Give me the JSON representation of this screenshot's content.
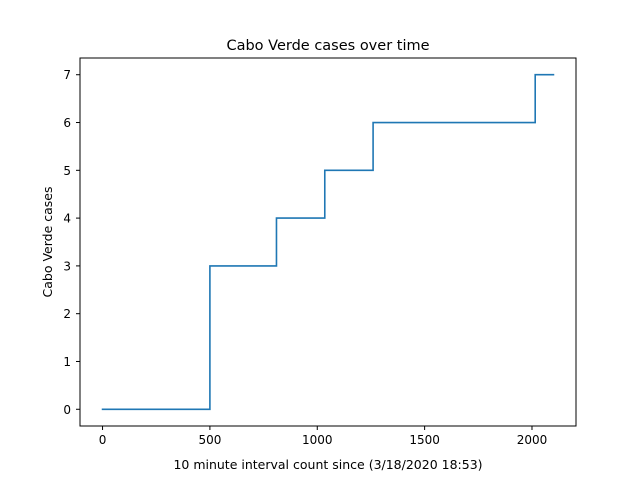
{
  "chart_data": {
    "type": "line",
    "title": "Cabo Verde cases over time",
    "xlabel": "10 minute interval count since (3/18/2020 18:53)",
    "ylabel": "Cabo Verde cases",
    "xlim": [
      -105,
      2205
    ],
    "ylim": [
      -0.35,
      7.35
    ],
    "xticks": [
      0,
      500,
      1000,
      1500,
      2000
    ],
    "yticks": [
      0,
      1,
      2,
      3,
      4,
      5,
      6,
      7
    ],
    "grid": false,
    "line_style": "steps",
    "series": [
      {
        "color": "#1f77b4",
        "x": [
          0,
          500,
          500,
          810,
          810,
          1035,
          1035,
          1260,
          1260,
          2015,
          2015,
          2100
        ],
        "y": [
          0,
          0,
          3,
          3,
          4,
          4,
          5,
          5,
          6,
          6,
          7,
          7
        ]
      }
    ]
  }
}
